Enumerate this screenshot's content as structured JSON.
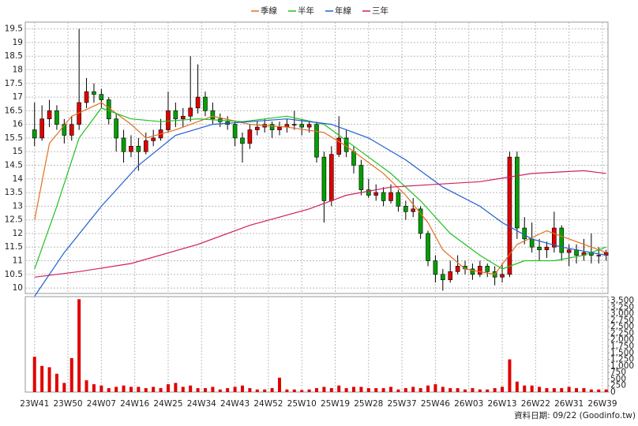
{
  "chart_data": {
    "type": "candlestick",
    "footer": "資料日期: 09/22  (Goodinfo.tw)",
    "up_color": "#e00000",
    "down_color": "#00a000",
    "volume_color": "#e00000",
    "grid": true,
    "x": [
      0,
      2,
      4,
      6,
      8,
      10,
      12,
      14,
      16,
      18,
      20,
      22,
      24,
      26,
      28,
      30,
      32,
      34,
      36,
      38,
      40,
      42,
      44,
      46,
      48,
      50,
      52,
      54,
      56,
      58,
      60,
      62,
      64,
      66,
      68,
      70,
      72,
      74,
      76,
      78,
      80,
      82,
      84,
      86,
      88,
      90,
      92,
      94,
      96,
      98,
      100,
      102,
      104,
      106,
      108,
      110,
      112,
      114,
      116,
      118,
      120,
      122,
      124,
      126,
      128,
      130,
      132,
      134,
      136,
      138,
      140,
      142,
      144,
      146,
      148,
      150,
      152,
      154
    ],
    "ohlc": [
      [
        15.8,
        16.8,
        15.2,
        15.5
      ],
      [
        15.5,
        16.7,
        15.4,
        16.2
      ],
      [
        16.2,
        16.9,
        15.9,
        16.5
      ],
      [
        16.5,
        16.7,
        15.8,
        16.0
      ],
      [
        16.0,
        16.2,
        15.3,
        15.6
      ],
      [
        15.6,
        16.3,
        15.4,
        16.0
      ],
      [
        16.0,
        19.5,
        15.8,
        16.8
      ],
      [
        16.8,
        17.7,
        16.6,
        17.2
      ],
      [
        17.2,
        17.5,
        16.8,
        17.1
      ],
      [
        17.1,
        17.3,
        16.6,
        16.9
      ],
      [
        16.9,
        17.0,
        16.0,
        16.2
      ],
      [
        16.2,
        16.4,
        15.0,
        15.5
      ],
      [
        15.5,
        15.8,
        14.6,
        15.0
      ],
      [
        15.0,
        15.6,
        14.8,
        15.2
      ],
      [
        15.2,
        15.5,
        14.3,
        15.0
      ],
      [
        15.0,
        15.7,
        14.9,
        15.4
      ],
      [
        15.4,
        15.8,
        15.2,
        15.5
      ],
      [
        15.5,
        16.2,
        15.4,
        15.8
      ],
      [
        15.8,
        17.2,
        15.7,
        16.5
      ],
      [
        16.5,
        16.8,
        15.9,
        16.2
      ],
      [
        16.2,
        16.6,
        15.9,
        16.3
      ],
      [
        16.3,
        18.5,
        16.1,
        16.6
      ],
      [
        16.6,
        18.2,
        16.4,
        17.0
      ],
      [
        17.0,
        17.2,
        16.3,
        16.5
      ],
      [
        16.5,
        16.8,
        16.0,
        16.2
      ],
      [
        16.2,
        16.4,
        15.9,
        16.1
      ],
      [
        16.1,
        16.3,
        15.8,
        16.0
      ],
      [
        16.0,
        16.1,
        15.2,
        15.5
      ],
      [
        15.5,
        15.7,
        14.6,
        15.3
      ],
      [
        15.3,
        16.0,
        15.1,
        15.8
      ],
      [
        15.8,
        16.1,
        15.6,
        15.9
      ],
      [
        15.9,
        16.2,
        15.7,
        16.0
      ],
      [
        16.0,
        16.1,
        15.5,
        15.8
      ],
      [
        15.8,
        16.1,
        15.6,
        15.9
      ],
      [
        15.9,
        16.2,
        15.7,
        16.0
      ],
      [
        16.0,
        16.5,
        15.8,
        16.0
      ],
      [
        16.0,
        16.2,
        15.6,
        15.9
      ],
      [
        15.9,
        16.1,
        15.7,
        16.0
      ],
      [
        16.0,
        16.1,
        14.6,
        14.8
      ],
      [
        14.8,
        15.0,
        12.4,
        13.2
      ],
      [
        13.2,
        15.2,
        13.0,
        14.9
      ],
      [
        14.9,
        16.3,
        14.8,
        15.5
      ],
      [
        15.5,
        15.8,
        14.8,
        15.0
      ],
      [
        15.0,
        15.2,
        14.2,
        14.5
      ],
      [
        14.5,
        14.7,
        13.4,
        13.6
      ],
      [
        13.6,
        14.0,
        13.3,
        13.4
      ],
      [
        13.4,
        13.8,
        13.2,
        13.5
      ],
      [
        13.5,
        13.7,
        13.0,
        13.2
      ],
      [
        13.2,
        13.8,
        13.1,
        13.5
      ],
      [
        13.5,
        13.6,
        12.8,
        13.0
      ],
      [
        13.0,
        13.2,
        12.5,
        12.8
      ],
      [
        12.8,
        13.3,
        12.6,
        12.9
      ],
      [
        12.9,
        13.0,
        11.8,
        12.0
      ],
      [
        12.0,
        12.1,
        10.8,
        11.0
      ],
      [
        11.0,
        11.2,
        10.2,
        10.5
      ],
      [
        10.5,
        10.7,
        9.9,
        10.3
      ],
      [
        10.3,
        11.0,
        10.2,
        10.6
      ],
      [
        10.6,
        11.2,
        10.5,
        10.8
      ],
      [
        10.8,
        11.0,
        10.5,
        10.7
      ],
      [
        10.7,
        10.9,
        10.3,
        10.5
      ],
      [
        10.5,
        11.0,
        10.4,
        10.8
      ],
      [
        10.8,
        10.9,
        10.4,
        10.6
      ],
      [
        10.6,
        10.8,
        10.1,
        10.4
      ],
      [
        10.4,
        10.9,
        10.2,
        10.5
      ],
      [
        10.5,
        15.0,
        10.4,
        14.8
      ],
      [
        14.8,
        15.0,
        11.8,
        12.2
      ],
      [
        12.2,
        12.6,
        11.6,
        11.8
      ],
      [
        11.8,
        12.4,
        11.3,
        11.5
      ],
      [
        11.5,
        11.8,
        11.0,
        11.4
      ],
      [
        11.4,
        11.7,
        11.1,
        11.5
      ],
      [
        11.5,
        12.8,
        11.3,
        12.2
      ],
      [
        12.2,
        12.3,
        11.0,
        11.3
      ],
      [
        11.3,
        11.6,
        10.8,
        11.4
      ],
      [
        11.4,
        11.6,
        10.9,
        11.2
      ],
      [
        11.2,
        11.8,
        11.0,
        11.3
      ],
      [
        11.3,
        12.0,
        10.9,
        11.2
      ],
      [
        11.2,
        11.5,
        10.9,
        11.2
      ],
      [
        11.2,
        11.4,
        11.0,
        11.3
      ]
    ],
    "volume": [
      1350,
      1000,
      950,
      700,
      350,
      1300,
      3550,
      450,
      300,
      250,
      150,
      200,
      250,
      200,
      200,
      150,
      200,
      150,
      300,
      350,
      200,
      250,
      150,
      150,
      200,
      100,
      150,
      200,
      250,
      150,
      100,
      100,
      150,
      550,
      100,
      100,
      80,
      100,
      150,
      200,
      150,
      250,
      150,
      200,
      200,
      150,
      150,
      150,
      200,
      100,
      150,
      200,
      150,
      250,
      300,
      200,
      150,
      150,
      100,
      150,
      100,
      100,
      150,
      200,
      1250,
      400,
      250,
      250,
      200,
      150,
      150,
      150,
      200,
      150,
      150,
      100,
      100,
      100
    ],
    "series": [
      {
        "name": "季線",
        "color": "#e07020",
        "x": [
          0,
          4,
          10,
          18,
          26,
          30,
          38,
          48,
          58,
          68,
          78,
          84,
          94,
          100,
          106,
          110,
          116,
          124,
          130,
          138,
          146,
          154
        ],
        "values": [
          12.5,
          15.3,
          16.3,
          16.8,
          16.0,
          15.5,
          15.8,
          16.3,
          16.0,
          15.9,
          15.7,
          15.2,
          14.2,
          13.4,
          12.4,
          11.4,
          10.7,
          10.5,
          11.6,
          12.1,
          11.7,
          11.3
        ]
      },
      {
        "name": "半年",
        "color": "#20c020",
        "x": [
          0,
          6,
          12,
          18,
          26,
          34,
          44,
          56,
          68,
          78,
          88,
          96,
          104,
          112,
          120,
          126,
          132,
          140,
          148,
          154
        ],
        "values": [
          10.7,
          13.0,
          15.5,
          16.6,
          16.2,
          16.1,
          16.2,
          16.1,
          16.3,
          16.0,
          15.0,
          14.2,
          13.2,
          12.0,
          11.2,
          10.7,
          11.0,
          11.0,
          11.2,
          11.5
        ]
      },
      {
        "name": "年線",
        "color": "#2060d0",
        "x": [
          0,
          8,
          18,
          28,
          38,
          48,
          58,
          68,
          80,
          90,
          100,
          110,
          120,
          126,
          134,
          142,
          154
        ],
        "values": [
          9.7,
          11.3,
          13.0,
          14.5,
          15.6,
          16.0,
          16.1,
          16.2,
          16.0,
          15.5,
          14.7,
          13.7,
          13.0,
          12.4,
          11.8,
          11.5,
          11.2
        ]
      },
      {
        "name": "三年",
        "color": "#d02060",
        "x": [
          0,
          12,
          26,
          44,
          58,
          74,
          84,
          96,
          108,
          120,
          134,
          148,
          154
        ],
        "values": [
          10.4,
          10.6,
          10.9,
          11.6,
          12.3,
          12.9,
          13.4,
          13.7,
          13.8,
          13.9,
          14.2,
          14.3,
          14.2
        ]
      }
    ],
    "xlim": [
      -2.5,
      154.5
    ],
    "xticks": [
      {
        "value": 0,
        "label": "23W41"
      },
      {
        "value": 9,
        "label": "23W50"
      },
      {
        "value": 18,
        "label": "24W07"
      },
      {
        "value": 27,
        "label": "24W16"
      },
      {
        "value": 36,
        "label": "24W25"
      },
      {
        "value": 45,
        "label": "24W34"
      },
      {
        "value": 54,
        "label": "24W43"
      },
      {
        "value": 63,
        "label": "24W52"
      },
      {
        "value": 72,
        "label": "25W10"
      },
      {
        "value": 81,
        "label": "25W19"
      },
      {
        "value": 90,
        "label": "25W28"
      },
      {
        "value": 99,
        "label": "25W37"
      },
      {
        "value": 108,
        "label": "25W46"
      },
      {
        "value": 117,
        "label": "26W03"
      },
      {
        "value": 126,
        "label": "26W13"
      },
      {
        "value": 135,
        "label": "26W22"
      },
      {
        "value": 144,
        "label": "26W31"
      },
      {
        "value": 153,
        "label": "26W39"
      }
    ],
    "ylim": [
      9.8,
      19.75
    ],
    "yticks": [
      10,
      10.5,
      11,
      11.5,
      12,
      12.5,
      13,
      13.5,
      14,
      14.5,
      15,
      15.5,
      16,
      16.5,
      17,
      17.5,
      18,
      18.5,
      19,
      19.5
    ],
    "y2lim": [
      0,
      3650
    ],
    "y2ticks": [
      0,
      250,
      500,
      750,
      {
        "value": 1000,
        "label": "1,000"
      },
      {
        "value": 1250,
        "label": "1,250"
      },
      {
        "value": 1500,
        "label": "1,500"
      },
      {
        "value": 1750,
        "label": "1,750"
      },
      {
        "value": 2000,
        "label": "2,000"
      },
      {
        "value": 2250,
        "label": "2,250"
      },
      {
        "value": 2500,
        "label": "2,500"
      },
      {
        "value": 2750,
        "label": "2,750"
      },
      {
        "value": 3000,
        "label": "3,000"
      },
      {
        "value": 3250,
        "label": "3,250"
      },
      {
        "value": 3500,
        "label": "3,500"
      }
    ]
  }
}
